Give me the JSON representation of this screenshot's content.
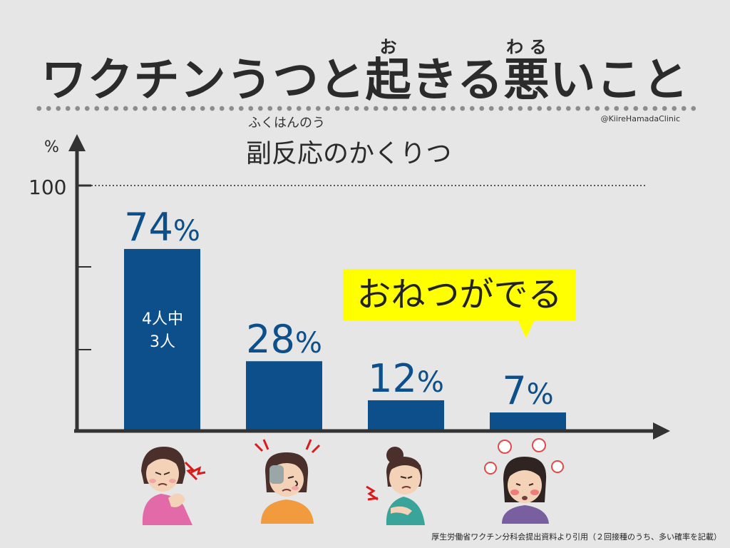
{
  "title": {
    "segments": [
      "ワクチンうつと",
      "起",
      "きる",
      "悪",
      "いこと"
    ],
    "ruby": {
      "oki": "お",
      "waru": "わる"
    }
  },
  "credit": "@KiireHamadaClinic",
  "chart_data": {
    "type": "bar",
    "title": "副反応のかくりつ",
    "title_ruby": "ふくはんのう",
    "ylabel": "%",
    "ytick_label": "100",
    "ylim": [
      0,
      100
    ],
    "gridline_at": 100,
    "categories": [
      "",
      "",
      "",
      ""
    ],
    "values": [
      74,
      28,
      12,
      7
    ],
    "value_labels": [
      "74",
      "28",
      "12",
      "7"
    ],
    "pct_sign": "%",
    "bar_color": "#0d4f8b",
    "inner_label": {
      "line1": "4人中",
      "line2": "3人"
    },
    "callout": {
      "text": "おねつがでる",
      "color": "#ffff00"
    }
  },
  "source": "厚生労働省ワクチン分科会提出資料より引用（２回接種のうち、多い確率を記載）",
  "icons": [
    "shoulder-pain-person-icon",
    "headache-person-icon",
    "body-ache-person-icon",
    "fever-person-icon"
  ]
}
